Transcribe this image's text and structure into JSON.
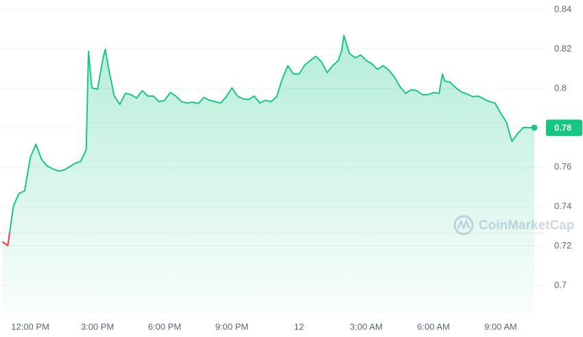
{
  "chart_data": {
    "type": "line",
    "x": [
      10.75,
      11.0,
      11.25,
      11.5,
      11.75,
      12.0,
      12.25,
      12.5,
      12.75,
      13.0,
      13.25,
      13.5,
      13.75,
      14.0,
      14.25,
      14.5,
      14.6,
      14.75,
      15.0,
      15.25,
      15.35,
      15.5,
      15.75,
      16.0,
      16.25,
      16.5,
      16.75,
      17.0,
      17.25,
      17.5,
      17.75,
      18.0,
      18.25,
      18.5,
      18.75,
      19.0,
      19.25,
      19.5,
      19.75,
      20.0,
      20.25,
      20.5,
      20.75,
      21.0,
      21.25,
      21.5,
      21.75,
      22.0,
      22.25,
      22.5,
      22.75,
      23.0,
      23.25,
      23.5,
      23.75,
      24.0,
      24.25,
      24.5,
      24.75,
      25.0,
      25.25,
      25.5,
      25.75,
      25.9,
      26.0,
      26.25,
      26.5,
      26.75,
      27.0,
      27.25,
      27.5,
      27.75,
      28.0,
      28.25,
      28.5,
      28.75,
      29.0,
      29.25,
      29.5,
      29.75,
      30.0,
      30.25,
      30.4,
      30.5,
      30.75,
      31.0,
      31.25,
      31.5,
      31.75,
      32.0,
      32.25,
      32.5,
      32.75,
      33.0,
      33.25,
      33.5,
      33.75,
      34.0,
      34.25,
      34.5
    ],
    "values": [
      0.7222,
      0.7202,
      0.7404,
      0.7467,
      0.748,
      0.7648,
      0.7717,
      0.7641,
      0.7606,
      0.7592,
      0.7581,
      0.7585,
      0.7602,
      0.762,
      0.763,
      0.7689,
      0.8188,
      0.8003,
      0.7996,
      0.8153,
      0.8198,
      0.8101,
      0.7961,
      0.7919,
      0.7975,
      0.7968,
      0.7951,
      0.7989,
      0.7961,
      0.7961,
      0.7933,
      0.794,
      0.7979,
      0.7961,
      0.7933,
      0.7926,
      0.793,
      0.7923,
      0.7954,
      0.794,
      0.7933,
      0.7926,
      0.7958,
      0.8003,
      0.7961,
      0.7947,
      0.7944,
      0.7961,
      0.7926,
      0.794,
      0.7933,
      0.7958,
      0.8048,
      0.8115,
      0.8073,
      0.8073,
      0.8118,
      0.8142,
      0.8163,
      0.8135,
      0.808,
      0.8115,
      0.8142,
      0.8191,
      0.8268,
      0.8177,
      0.8156,
      0.817,
      0.8142,
      0.8125,
      0.8097,
      0.8115,
      0.8094,
      0.8059,
      0.801,
      0.7975,
      0.7993,
      0.7989,
      0.7968,
      0.7968,
      0.7979,
      0.7975,
      0.8073,
      0.8038,
      0.8031,
      0.8003,
      0.7982,
      0.7972,
      0.7958,
      0.7961,
      0.7947,
      0.7933,
      0.7926,
      0.7874,
      0.7829,
      0.7731,
      0.777,
      0.7801,
      0.7801,
      0.7801
    ],
    "up_color": "#16c784",
    "down_color": "#ea3943",
    "reference_line": 0.7265,
    "current_price": 0.78,
    "watermark": "CoinMarketCap",
    "xlim": [
      10.65,
      34.99
    ],
    "xticks": [
      {
        "value": 12,
        "label": "12:00 PM"
      },
      {
        "value": 15,
        "label": "3:00 PM"
      },
      {
        "value": 18,
        "label": "6:00 PM"
      },
      {
        "value": 21,
        "label": "9:00 PM"
      },
      {
        "value": 24,
        "label": "12"
      },
      {
        "value": 27,
        "label": "3:00 AM"
      },
      {
        "value": 30,
        "label": "6:00 AM"
      },
      {
        "value": 33,
        "label": "9:00 AM"
      }
    ],
    "ylim": [
      0.6853,
      0.8449
    ],
    "yticks": [
      0.7,
      0.72,
      0.74,
      0.76,
      0.78,
      0.8,
      0.82,
      0.84
    ],
    "grid": true
  }
}
